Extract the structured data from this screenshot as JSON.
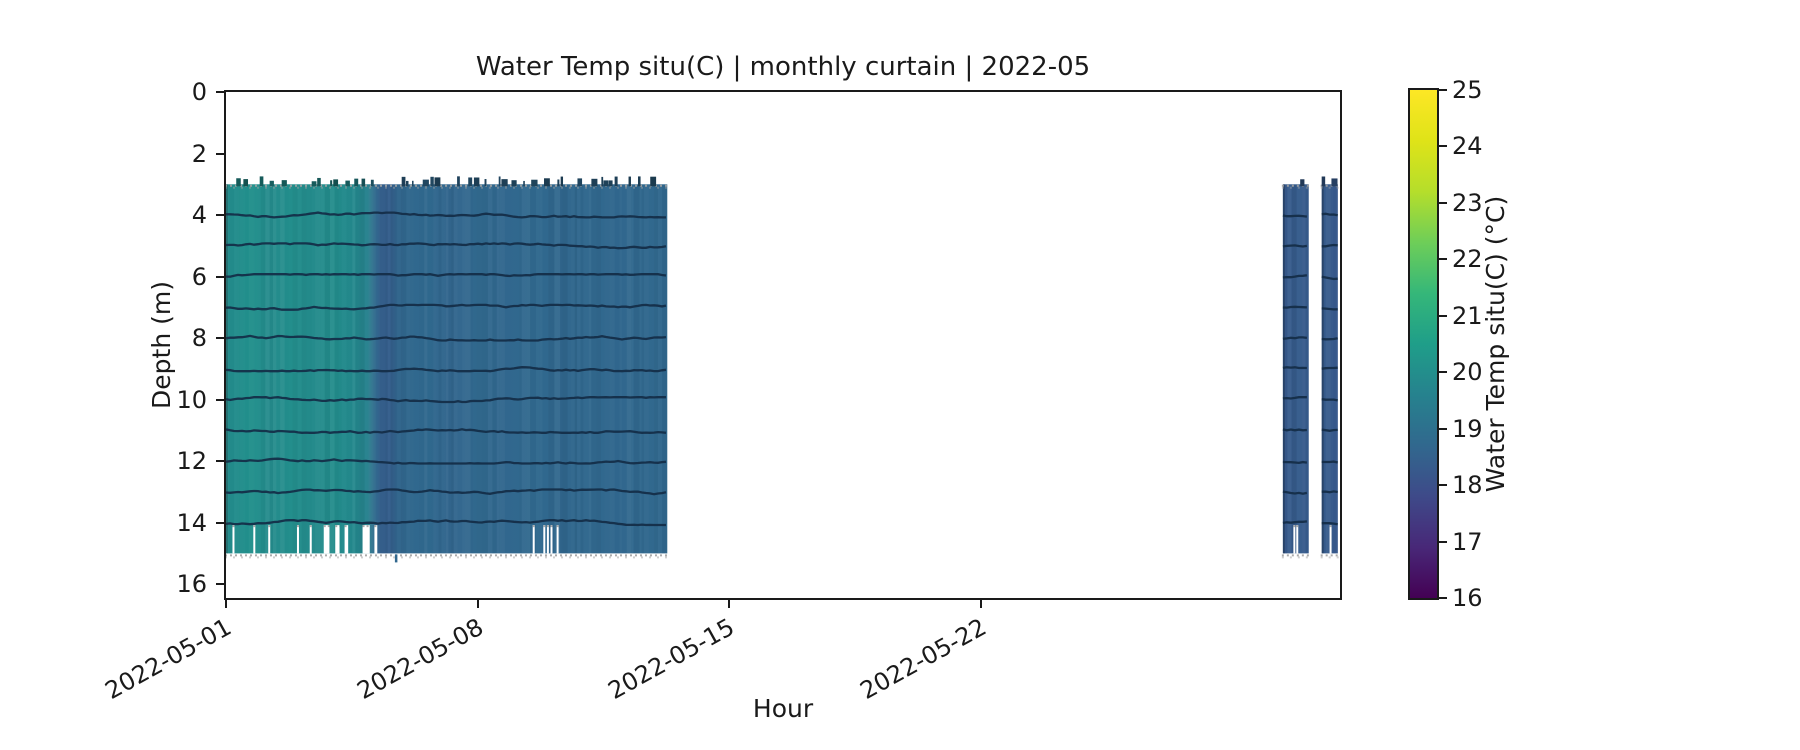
{
  "figure": {
    "background": "#ffffff"
  },
  "chart_data": {
    "type": "heatmap",
    "title": "Water Temp situ(C) | monthly curtain | 2022-05",
    "xlabel": "Hour",
    "ylabel": "Depth (m)",
    "x_axis_days": 31,
    "x_start_date": "2022-05-01",
    "x_ticks": [
      {
        "day": 0,
        "label": "2022-05-01"
      },
      {
        "day": 7,
        "label": "2022-05-08"
      },
      {
        "day": 14,
        "label": "2022-05-15"
      },
      {
        "day": 21,
        "label": "2022-05-22"
      }
    ],
    "y_ticks": [
      0,
      2,
      4,
      6,
      8,
      10,
      12,
      14,
      16
    ],
    "y_axis_max": 16.45,
    "grid": false,
    "legend": "none",
    "depth_top": 3.0,
    "depth_bottom": 15.0,
    "contour_depths": [
      4,
      5,
      6,
      7,
      8,
      9,
      10,
      11,
      12,
      13,
      14
    ],
    "colorbar": {
      "label": "Water Temp situ(C) (°C)",
      "min": 16,
      "max": 25,
      "ticks": [
        16,
        17,
        18,
        19,
        20,
        21,
        22,
        23,
        24,
        25
      ],
      "colormap": "viridis",
      "stops": [
        "#440154",
        "#482878",
        "#3e4a89",
        "#31688e",
        "#26828e",
        "#1f9e89",
        "#35b779",
        "#6ece58",
        "#b5de2b",
        "#dfe318",
        "#fde725"
      ]
    },
    "blocks": [
      {
        "name": "main-curtain-block",
        "day_start": 0.0,
        "day_end": 12.28,
        "temp_profile": [
          [
            0.0,
            19.9
          ],
          [
            0.7,
            20.05
          ],
          [
            1.2,
            19.9
          ],
          [
            1.8,
            20.0
          ],
          [
            2.4,
            19.9
          ],
          [
            3.0,
            19.95
          ],
          [
            3.6,
            19.8
          ],
          [
            3.95,
            19.55
          ],
          [
            4.1,
            18.9
          ],
          [
            4.3,
            18.45
          ],
          [
            4.55,
            18.4
          ],
          [
            4.75,
            18.6
          ],
          [
            5.0,
            18.7
          ],
          [
            5.6,
            18.75
          ],
          [
            6.2,
            18.65
          ],
          [
            7.0,
            18.72
          ],
          [
            7.8,
            18.68
          ],
          [
            8.6,
            18.75
          ],
          [
            9.4,
            18.68
          ],
          [
            10.2,
            18.72
          ],
          [
            11.0,
            18.68
          ],
          [
            11.6,
            18.73
          ],
          [
            12.28,
            18.7
          ]
        ],
        "dropouts": [
          [
            0.2,
            0.04
          ],
          [
            0.78,
            0.04
          ],
          [
            1.2,
            0.05
          ],
          [
            2.0,
            0.05
          ],
          [
            2.35,
            0.04
          ],
          [
            2.8,
            0.16
          ],
          [
            3.1,
            0.12
          ],
          [
            3.35,
            0.1
          ],
          [
            3.9,
            0.2
          ],
          [
            4.17,
            0.08
          ],
          [
            8.56,
            0.05
          ],
          [
            8.85,
            0.04
          ],
          [
            8.95,
            0.04
          ],
          [
            9.05,
            0.04
          ],
          [
            9.22,
            0.04
          ]
        ],
        "below_spike_day": 4.7
      },
      {
        "name": "strip-1",
        "day_start": 29.41,
        "day_end": 30.13,
        "temp_profile": [
          [
            29.41,
            18.28
          ],
          [
            29.8,
            18.35
          ],
          [
            30.13,
            18.3
          ]
        ],
        "dropouts": [
          [
            29.72,
            0.035
          ],
          [
            29.8,
            0.035
          ]
        ]
      },
      {
        "name": "strip-2",
        "day_start": 30.49,
        "day_end": 30.94,
        "temp_profile": [
          [
            30.49,
            18.32
          ],
          [
            30.94,
            18.26
          ]
        ],
        "dropouts": [
          [
            30.73,
            0.04
          ]
        ]
      }
    ],
    "colors": {
      "spine": "#1a1a1a",
      "contour_line": "#142c46",
      "edge_speckle": "#a3a3a3",
      "dropout": "#ffffff",
      "text": "#1a1a1a"
    }
  }
}
